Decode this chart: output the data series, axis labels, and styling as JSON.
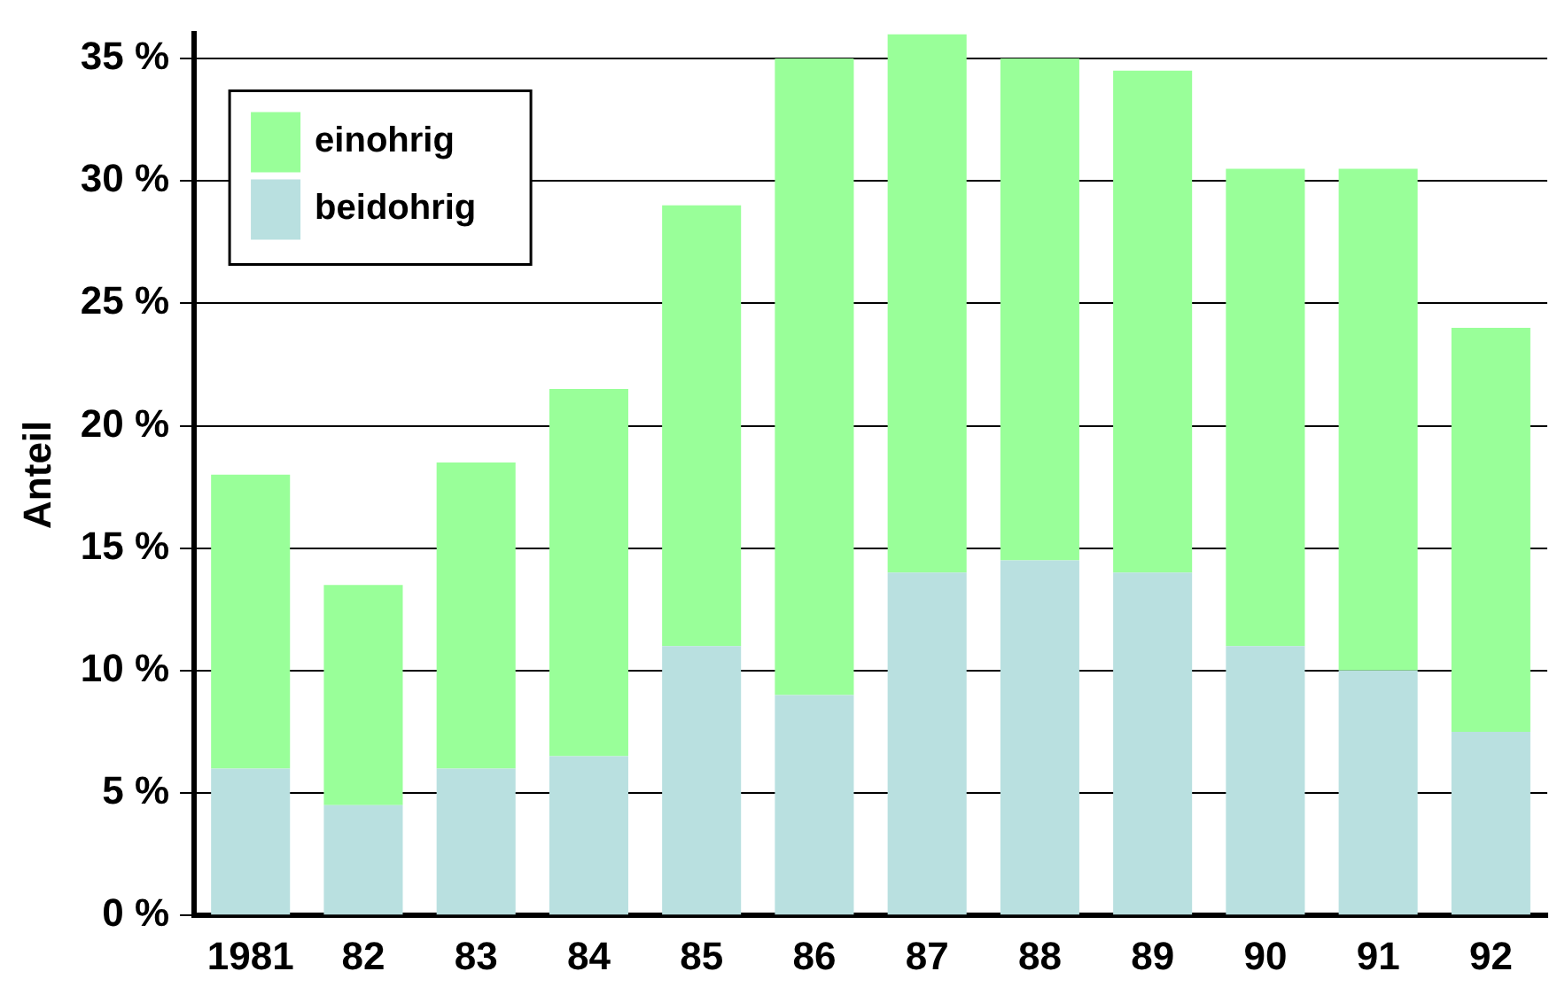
{
  "chart_data": {
    "type": "bar",
    "stacked": true,
    "ylabel": "Anteil",
    "categories": [
      "1981",
      "82",
      "83",
      "84",
      "85",
      "86",
      "87",
      "88",
      "89",
      "90",
      "91",
      "92"
    ],
    "series": [
      {
        "name": "beidohrig",
        "color": "#b9e0e0",
        "values": [
          6,
          4.5,
          6,
          6.5,
          11,
          9,
          14,
          14.5,
          14,
          11,
          10,
          7.5
        ]
      },
      {
        "name": "einohrig",
        "color": "#99ff99",
        "values": [
          12,
          9,
          12.5,
          15,
          18,
          26,
          22,
          20.5,
          20.5,
          19.5,
          20.5,
          16.5
        ]
      }
    ],
    "ylim": [
      0,
      36
    ],
    "yticks": [
      {
        "value": 0,
        "label": "0 %"
      },
      {
        "value": 5,
        "label": "5 %"
      },
      {
        "value": 10,
        "label": "10 %"
      },
      {
        "value": 15,
        "label": "15 %"
      },
      {
        "value": 20,
        "label": "20 %"
      },
      {
        "value": 25,
        "label": "25 %"
      },
      {
        "value": 30,
        "label": "30 %"
      },
      {
        "value": 35,
        "label": "35 %"
      }
    ],
    "grid": "y",
    "legend": "top left"
  }
}
